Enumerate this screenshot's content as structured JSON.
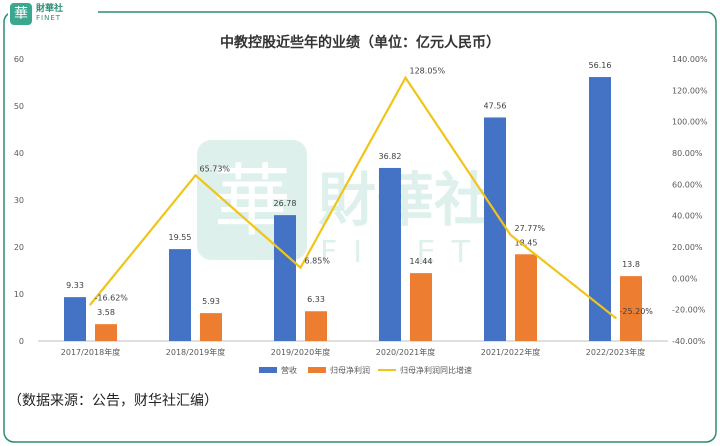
{
  "brand": {
    "badge_char": "華",
    "name_cn": "財華社",
    "name_en": "FINET"
  },
  "watermark": {
    "badge_char": "華",
    "name_cn": "財華社",
    "name_en": "FINET"
  },
  "source_note": "（数据来源：公告，财华社汇编）",
  "colors": {
    "revenue": "#4472C4",
    "profit": "#ED7D31",
    "growth": "#F0C419",
    "frame": "#2e8b72"
  },
  "chart_data": {
    "type": "bar",
    "title": "中教控股近些年的业绩（单位：亿元人民币）",
    "categories": [
      "2017/2018年度",
      "2018/2019年度",
      "2019/2020年度",
      "2020/2021年度",
      "2021/2022年度",
      "2022/2023年度"
    ],
    "series": [
      {
        "name": "营收",
        "type": "bar",
        "axis": "left",
        "values": [
          9.33,
          19.55,
          26.78,
          36.82,
          47.56,
          56.16
        ],
        "labels": [
          "9.33",
          "19.55",
          "26.78",
          "36.82",
          "47.56",
          "56.16"
        ]
      },
      {
        "name": "归母净利润",
        "type": "bar",
        "axis": "left",
        "values": [
          3.58,
          5.93,
          6.33,
          14.44,
          18.45,
          13.8
        ],
        "labels": [
          "3.58",
          "5.93",
          "6.33",
          "14.44",
          "18.45",
          "13.8"
        ]
      },
      {
        "name": "归母净利润同比增速",
        "type": "line",
        "axis": "right",
        "values": [
          -16.62,
          65.73,
          6.85,
          128.05,
          27.77,
          -25.2
        ],
        "labels": [
          "-16.62%",
          "65.73%",
          "6.85%",
          "128.05%",
          "27.77%",
          "-25.20%"
        ]
      }
    ],
    "y_left": {
      "min": 0,
      "max": 60,
      "step": 10,
      "ticks": [
        "0",
        "10",
        "20",
        "30",
        "40",
        "50",
        "60"
      ]
    },
    "y_right": {
      "min": -40,
      "max": 140,
      "step": 20,
      "ticks": [
        "-40.00%",
        "-20.00%",
        "0.00%",
        "20.00%",
        "40.00%",
        "60.00%",
        "80.00%",
        "100.00%",
        "120.00%",
        "140.00%"
      ]
    },
    "grid": false,
    "legend": "bottom"
  }
}
